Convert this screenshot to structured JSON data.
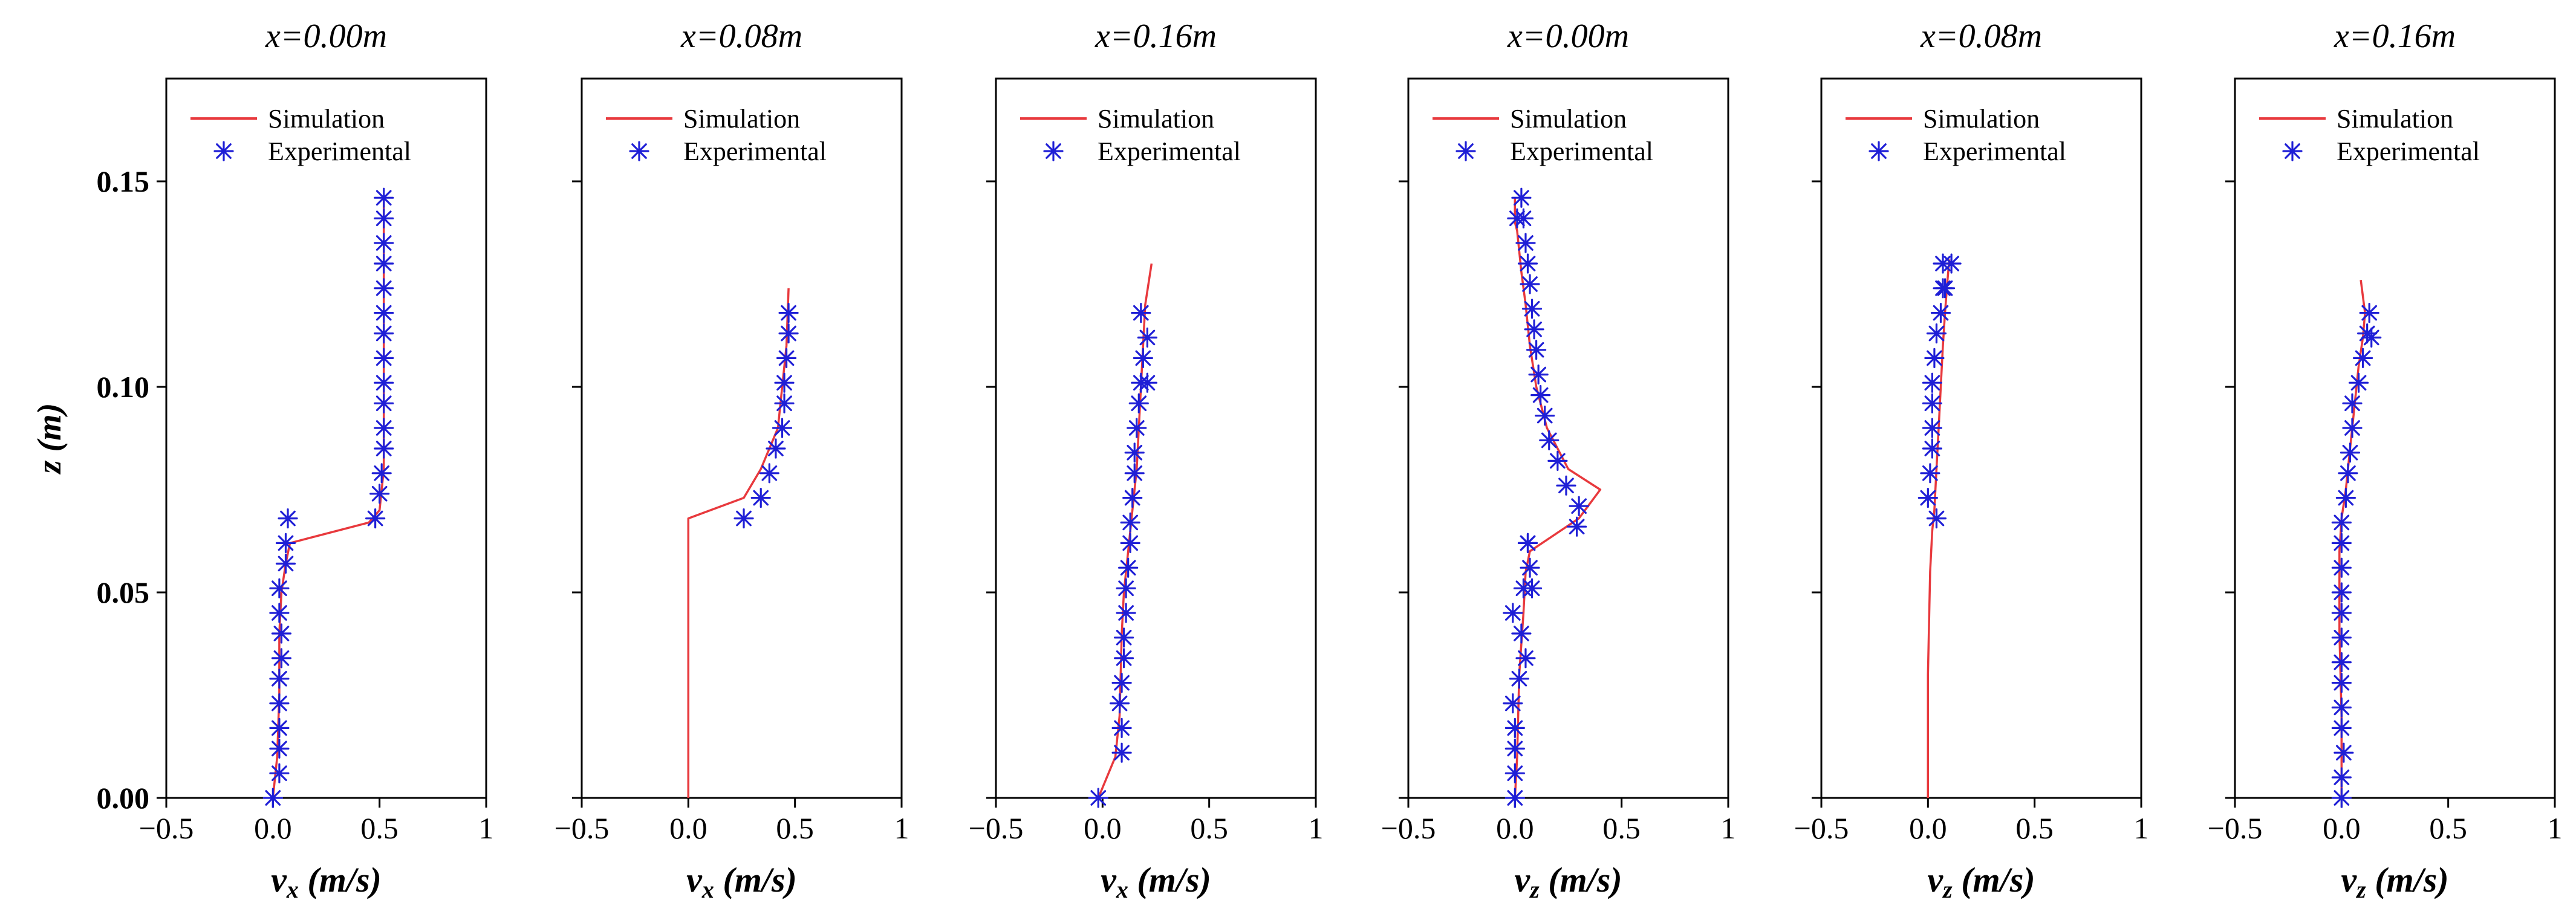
{
  "colors": {
    "simulation": "#e8393d",
    "experimental": "#1f1fd6",
    "axis": "#000000",
    "background": "#ffffff"
  },
  "legend_labels": {
    "simulation": "Simulation",
    "experimental": "Experimental"
  },
  "chart_data": [
    {
      "type": "line",
      "title": "x=0.00m",
      "xlabel": "vx (m/s)",
      "xlabel_main": "v",
      "xlabel_sub": "x",
      "xlabel_unit": "(m/s)",
      "ylabel": "z (m)",
      "xlim": [
        -0.5,
        1
      ],
      "ylim": [
        0,
        0.175
      ],
      "xticks": [
        -0.5,
        0,
        0.5,
        1
      ],
      "xtick_labels": [
        "−0.5",
        "0.0",
        "0.5",
        "1"
      ],
      "yticks": [
        0,
        0.05,
        0.1,
        0.15
      ],
      "ytick_labels": [
        "0.00",
        "0.05",
        "0.10",
        "0.15"
      ],
      "legend": "top-left",
      "series": [
        {
          "name": "Simulation",
          "kind": "line",
          "x": [
            0.0,
            0.02,
            0.03,
            0.03,
            0.04,
            0.06,
            0.08,
            0.45,
            0.5,
            0.52,
            0.52
          ],
          "y": [
            0.0,
            0.01,
            0.025,
            0.04,
            0.05,
            0.057,
            0.062,
            0.067,
            0.07,
            0.08,
            0.146
          ]
        },
        {
          "name": "Experimental",
          "kind": "scatter",
          "x": [
            0.0,
            0.03,
            0.03,
            0.03,
            0.03,
            0.03,
            0.04,
            0.04,
            0.03,
            0.03,
            0.06,
            0.06,
            0.07,
            0.48,
            0.5,
            0.51,
            0.52,
            0.52,
            0.52,
            0.52,
            0.52,
            0.52,
            0.52,
            0.52,
            0.52,
            0.52,
            0.52,
            0.52
          ],
          "y": [
            0.0,
            0.006,
            0.012,
            0.017,
            0.023,
            0.029,
            0.034,
            0.04,
            0.045,
            0.051,
            0.057,
            0.062,
            0.068,
            0.068,
            0.074,
            0.079,
            0.085,
            0.09,
            0.096,
            0.101,
            0.107,
            0.113,
            0.118,
            0.124,
            0.13,
            0.135,
            0.141,
            0.146
          ]
        }
      ]
    },
    {
      "type": "line",
      "title": "x=0.08m",
      "xlabel": "vx (m/s)",
      "xlabel_main": "v",
      "xlabel_sub": "x",
      "xlabel_unit": "(m/s)",
      "ylabel": "",
      "xlim": [
        -0.5,
        1
      ],
      "ylim": [
        0,
        0.175
      ],
      "xticks": [
        -0.5,
        0,
        0.5,
        1
      ],
      "xtick_labels": [
        "−0.5",
        "0.0",
        "0.5",
        "1"
      ],
      "legend": "top-left",
      "series": [
        {
          "name": "Simulation",
          "kind": "line",
          "x": [
            0.0,
            0.0,
            0.0,
            0.26,
            0.34,
            0.42,
            0.46,
            0.47
          ],
          "y": [
            0.0,
            0.04,
            0.068,
            0.073,
            0.08,
            0.09,
            0.11,
            0.124
          ]
        },
        {
          "name": "Experimental",
          "kind": "scatter",
          "x": [
            0.26,
            0.34,
            0.38,
            0.41,
            0.44,
            0.45,
            0.45,
            0.46,
            0.47,
            0.47
          ],
          "y": [
            0.068,
            0.073,
            0.079,
            0.085,
            0.09,
            0.096,
            0.101,
            0.107,
            0.113,
            0.118
          ]
        }
      ]
    },
    {
      "type": "line",
      "title": "x=0.16m",
      "xlabel": "vx (m/s)",
      "xlabel_main": "v",
      "xlabel_sub": "x",
      "xlabel_unit": "(m/s)",
      "ylabel": "",
      "xlim": [
        -0.5,
        1
      ],
      "ylim": [
        0,
        0.175
      ],
      "xticks": [
        -0.5,
        0,
        0.5,
        1
      ],
      "xtick_labels": [
        "−0.5",
        "0.0",
        "0.5",
        "1"
      ],
      "legend": "top-left",
      "series": [
        {
          "name": "Simulation",
          "kind": "line",
          "x": [
            -0.02,
            0.06,
            0.08,
            0.09,
            0.1,
            0.12,
            0.14,
            0.16,
            0.17,
            0.18,
            0.2,
            0.23
          ],
          "y": [
            0.0,
            0.01,
            0.02,
            0.04,
            0.05,
            0.06,
            0.07,
            0.08,
            0.09,
            0.1,
            0.12,
            0.13
          ]
        },
        {
          "name": "Experimental",
          "kind": "scatter",
          "x": [
            -0.02,
            0.09,
            0.09,
            0.08,
            0.09,
            0.1,
            0.1,
            0.11,
            0.11,
            0.12,
            0.13,
            0.13,
            0.14,
            0.15,
            0.15,
            0.16,
            0.17,
            0.18,
            0.19,
            0.21,
            0.21,
            0.18
          ],
          "y": [
            0.0,
            0.011,
            0.017,
            0.023,
            0.028,
            0.034,
            0.039,
            0.045,
            0.051,
            0.056,
            0.062,
            0.067,
            0.073,
            0.079,
            0.084,
            0.09,
            0.096,
            0.101,
            0.107,
            0.101,
            0.112,
            0.118
          ]
        }
      ]
    },
    {
      "type": "line",
      "title": "x=0.00m",
      "xlabel": "vz (m/s)",
      "xlabel_main": "v",
      "xlabel_sub": "z",
      "xlabel_unit": "(m/s)",
      "ylabel": "",
      "xlim": [
        -0.5,
        1
      ],
      "ylim": [
        0,
        0.175
      ],
      "xticks": [
        -0.5,
        0,
        0.5,
        1
      ],
      "xtick_labels": [
        "−0.5",
        "0.0",
        "0.5",
        "1"
      ],
      "legend": "top-left",
      "series": [
        {
          "name": "Simulation",
          "kind": "line",
          "x": [
            0.0,
            0.01,
            0.02,
            0.04,
            0.05,
            0.07,
            0.3,
            0.4,
            0.25,
            0.15,
            0.1,
            0.07,
            0.05,
            0.03,
            0.02,
            0.01,
            0.0,
            0.0
          ],
          "y": [
            0.0,
            0.01,
            0.03,
            0.045,
            0.055,
            0.06,
            0.068,
            0.075,
            0.08,
            0.09,
            0.1,
            0.11,
            0.12,
            0.128,
            0.133,
            0.138,
            0.14,
            0.146
          ]
        },
        {
          "name": "Experimental",
          "kind": "scatter",
          "x": [
            0.0,
            0.0,
            0.0,
            0.0,
            -0.01,
            0.02,
            0.05,
            0.03,
            -0.01,
            0.04,
            0.08,
            0.07,
            0.06,
            0.06,
            0.29,
            0.3,
            0.24,
            0.2,
            0.16,
            0.14,
            0.12,
            0.11,
            0.1,
            0.09,
            0.08,
            0.07,
            0.06,
            0.05,
            0.04,
            0.03,
            0.01
          ],
          "y": [
            0.0,
            0.006,
            0.012,
            0.017,
            0.023,
            0.029,
            0.034,
            0.04,
            0.045,
            0.051,
            0.051,
            0.056,
            0.062,
            0.062,
            0.066,
            0.071,
            0.076,
            0.082,
            0.087,
            0.093,
            0.098,
            0.103,
            0.109,
            0.114,
            0.119,
            0.125,
            0.13,
            0.135,
            0.141,
            0.146,
            0.141
          ]
        }
      ]
    },
    {
      "type": "line",
      "title": "x=0.08m",
      "xlabel": "vz (m/s)",
      "xlabel_main": "v",
      "xlabel_sub": "z",
      "xlabel_unit": "(m/s)",
      "ylabel": "",
      "xlim": [
        -0.5,
        1
      ],
      "ylim": [
        0,
        0.175
      ],
      "xticks": [
        -0.5,
        0,
        0.5,
        1
      ],
      "xtick_labels": [
        "−0.5",
        "0.0",
        "0.5",
        "1"
      ],
      "legend": "top-left",
      "series": [
        {
          "name": "Simulation",
          "kind": "line",
          "x": [
            0.0,
            0.0,
            0.01,
            0.02,
            0.03,
            0.04,
            0.05,
            0.06,
            0.07,
            0.08,
            0.09,
            0.1
          ],
          "y": [
            0.0,
            0.03,
            0.055,
            0.065,
            0.07,
            0.08,
            0.09,
            0.1,
            0.11,
            0.118,
            0.125,
            0.131
          ]
        },
        {
          "name": "Experimental",
          "kind": "scatter",
          "x": [
            0.04,
            0.0,
            0.01,
            0.02,
            0.02,
            0.02,
            0.02,
            0.03,
            0.04,
            0.06,
            0.07,
            0.07,
            0.08,
            0.11
          ],
          "y": [
            0.068,
            0.073,
            0.079,
            0.085,
            0.09,
            0.096,
            0.101,
            0.107,
            0.113,
            0.118,
            0.124,
            0.13,
            0.124,
            0.13
          ]
        }
      ]
    },
    {
      "type": "line",
      "title": "x=0.16m",
      "xlabel": "vz (m/s)",
      "xlabel_main": "v",
      "xlabel_sub": "z",
      "xlabel_unit": "(m/s)",
      "ylabel": "",
      "xlim": [
        -0.5,
        1
      ],
      "ylim": [
        0,
        0.175
      ],
      "xticks": [
        -0.5,
        0,
        0.5,
        1
      ],
      "xtick_labels": [
        "−0.5",
        "0.0",
        "0.5",
        "1"
      ],
      "legend": "top-left",
      "series": [
        {
          "name": "Simulation",
          "kind": "line",
          "x": [
            0.0,
            0.0,
            -0.01,
            -0.01,
            0.0,
            0.02,
            0.04,
            0.06,
            0.08,
            0.1,
            0.11,
            0.09
          ],
          "y": [
            0.0,
            0.02,
            0.04,
            0.06,
            0.068,
            0.075,
            0.085,
            0.095,
            0.105,
            0.112,
            0.118,
            0.126
          ]
        },
        {
          "name": "Experimental",
          "kind": "scatter",
          "x": [
            0.0,
            0.0,
            0.01,
            0.0,
            0.0,
            0.0,
            0.0,
            0.0,
            0.0,
            0.0,
            0.0,
            0.0,
            0.0,
            0.02,
            0.03,
            0.04,
            0.05,
            0.05,
            0.08,
            0.1,
            0.12,
            0.13,
            0.14
          ],
          "y": [
            0.0,
            0.005,
            0.011,
            0.017,
            0.022,
            0.028,
            0.033,
            0.039,
            0.045,
            0.05,
            0.056,
            0.062,
            0.067,
            0.073,
            0.079,
            0.084,
            0.09,
            0.096,
            0.101,
            0.107,
            0.113,
            0.118,
            0.112
          ]
        }
      ]
    }
  ]
}
